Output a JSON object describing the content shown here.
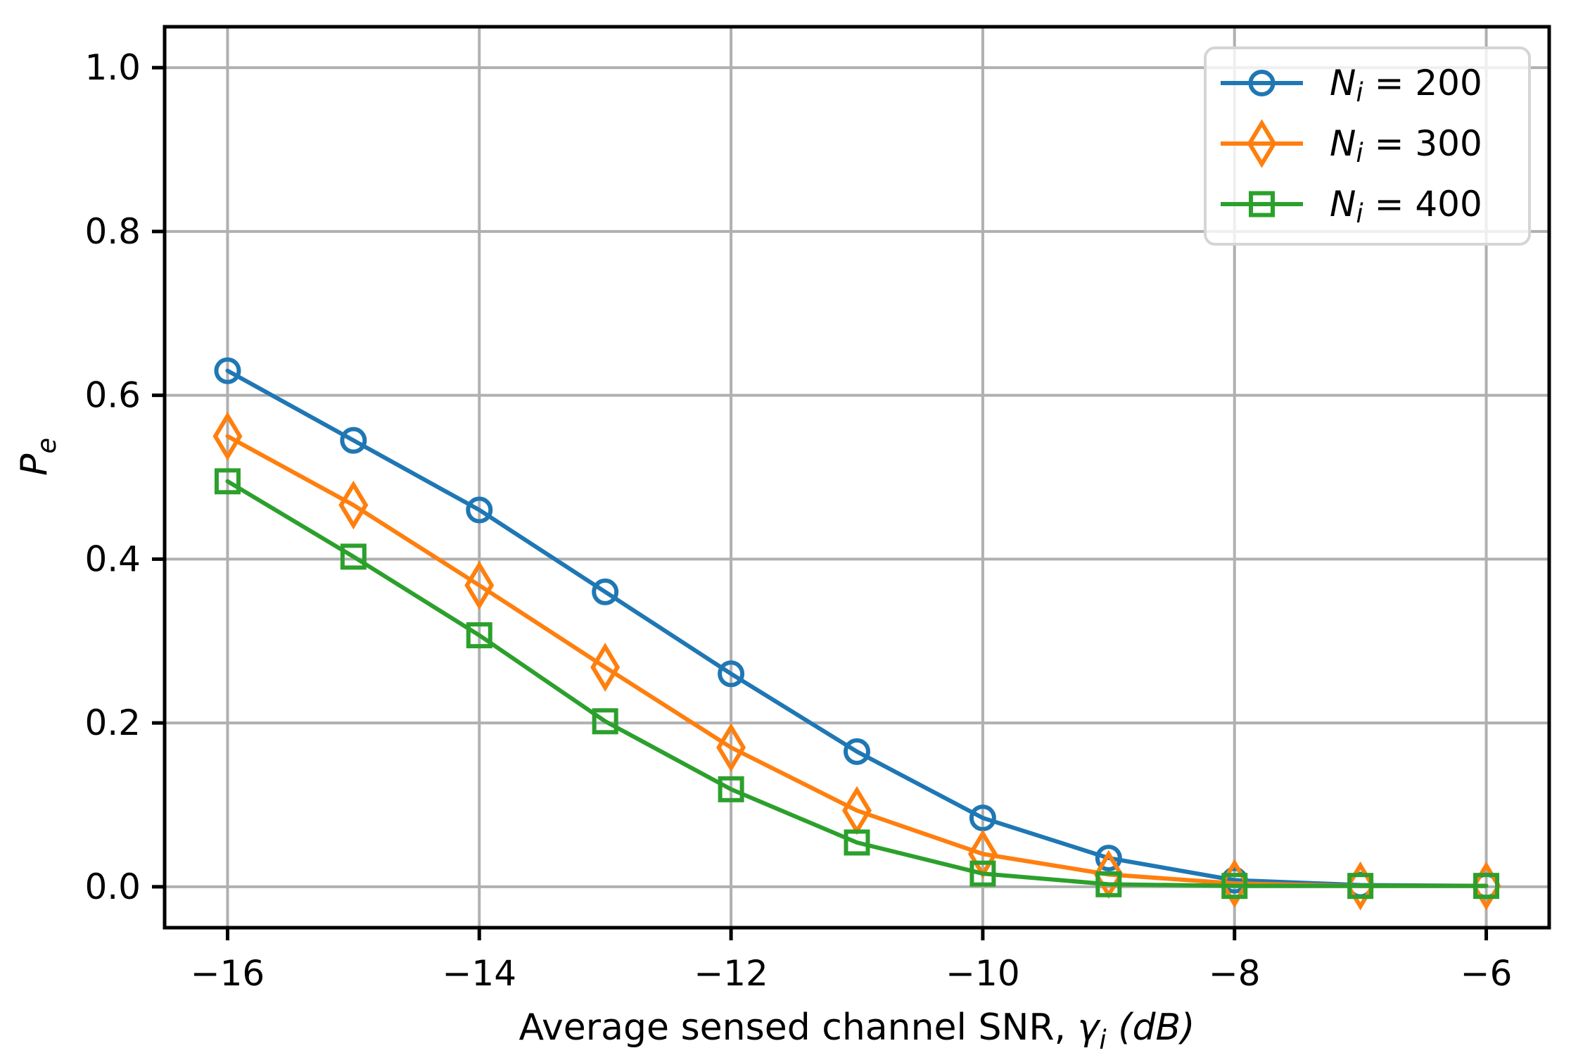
{
  "chart_data": {
    "type": "line",
    "x": [
      -16,
      -15,
      -14,
      -13,
      -12,
      -11,
      -10,
      -9,
      -8,
      -7,
      -6
    ],
    "series": [
      {
        "label": "Nᵢ = 200",
        "label_parts": {
          "var": "N",
          "sub": "i",
          "rest": " = 200"
        },
        "color": "#1f77b4",
        "marker": "circle",
        "values": [
          0.63,
          0.545,
          0.46,
          0.36,
          0.26,
          0.165,
          0.084,
          0.035,
          0.008,
          0.002,
          0.001
        ]
      },
      {
        "label": "Nᵢ = 300",
        "label_parts": {
          "var": "N",
          "sub": "i",
          "rest": " = 300"
        },
        "color": "#ff7f0e",
        "marker": "thin-diamond",
        "values": [
          0.55,
          0.466,
          0.368,
          0.268,
          0.17,
          0.093,
          0.04,
          0.015,
          0.004,
          0.001,
          0.001
        ]
      },
      {
        "label": "Nᵢ = 400",
        "label_parts": {
          "var": "N",
          "sub": "i",
          "rest": " = 400"
        },
        "color": "#2ca02c",
        "marker": "square",
        "values": [
          0.495,
          0.403,
          0.307,
          0.202,
          0.119,
          0.054,
          0.016,
          0.003,
          0.001,
          0.001,
          0.001
        ]
      }
    ],
    "xlabel": {
      "text": "Average sensed channel SNR, γᵢ (dB)",
      "parts": {
        "plain": "Average sensed channel SNR, ",
        "var": "γ",
        "sub": "i",
        "suffix": " (dB)"
      }
    },
    "ylabel": {
      "text": "Pₑ",
      "parts": {
        "var": "P",
        "sub": "e"
      }
    },
    "xticks": {
      "values": [
        -16,
        -14,
        -12,
        -10,
        -8,
        -6
      ],
      "labels": [
        "−16",
        "−14",
        "−12",
        "−10",
        "−8",
        "−6"
      ]
    },
    "yticks": {
      "values": [
        0.0,
        0.2,
        0.4,
        0.6,
        0.8,
        1.0
      ],
      "labels": [
        "0.0",
        "0.2",
        "0.4",
        "0.6",
        "0.8",
        "1.0"
      ]
    },
    "xlim": [
      -16.5,
      -5.5
    ],
    "ylim": [
      -0.05,
      1.05
    ],
    "grid": true,
    "legend": {
      "position": "upper right"
    }
  },
  "style": {
    "background": "#ffffff",
    "grid_color": "#b0b0b0",
    "spine_color": "#000000",
    "tick_color": "#000000",
    "text_color": "#000000",
    "legend_border_color": "#d5d5d5",
    "legend_fill": "rgba(255,255,255,0.8)",
    "series_blue": "#1f77b4",
    "series_orange": "#ff7f0e",
    "series_green": "#2ca02c"
  }
}
